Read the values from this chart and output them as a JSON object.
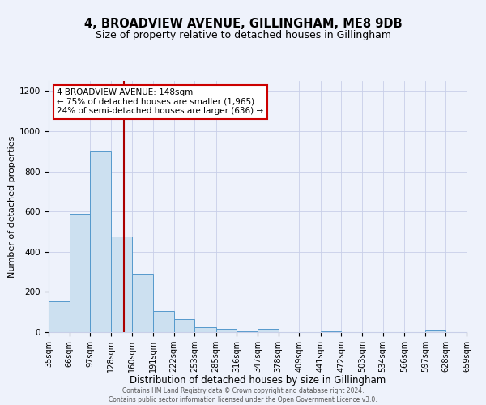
{
  "title": "4, BROADVIEW AVENUE, GILLINGHAM, ME8 9DB",
  "subtitle": "Size of property relative to detached houses in Gillingham",
  "xlabel": "Distribution of detached houses by size in Gillingham",
  "ylabel": "Number of detached properties",
  "bin_edges": [
    35,
    66,
    97,
    128,
    160,
    191,
    222,
    253,
    285,
    316,
    347,
    378,
    409,
    441,
    472,
    503,
    534,
    566,
    597,
    628,
    659
  ],
  "bar_heights": [
    155,
    590,
    900,
    475,
    290,
    105,
    65,
    25,
    15,
    5,
    15,
    0,
    0,
    5,
    0,
    0,
    0,
    0,
    10,
    0
  ],
  "bar_facecolor": "#cce0f0",
  "bar_edgecolor": "#5599cc",
  "property_line_x": 148,
  "property_line_color": "#aa0000",
  "annotation_line1": "4 BROADVIEW AVENUE: 148sqm",
  "annotation_line2": "← 75% of detached houses are smaller (1,965)",
  "annotation_line3": "24% of semi-detached houses are larger (636) →",
  "annotation_box_edgecolor": "#cc0000",
  "annotation_box_facecolor": "#ffffff",
  "ylim": [
    0,
    1250
  ],
  "yticks": [
    0,
    200,
    400,
    600,
    800,
    1000,
    1200
  ],
  "background_color": "#eef2fb",
  "grid_color": "#c8cfe8",
  "footer_line1": "Contains HM Land Registry data © Crown copyright and database right 2024.",
  "footer_line2": "Contains public sector information licensed under the Open Government Licence v3.0.",
  "title_fontsize": 10.5,
  "subtitle_fontsize": 9,
  "xlabel_fontsize": 8.5,
  "ylabel_fontsize": 8,
  "tick_fontsize": 7,
  "annotation_fontsize": 7.5,
  "footer_fontsize": 5.5
}
